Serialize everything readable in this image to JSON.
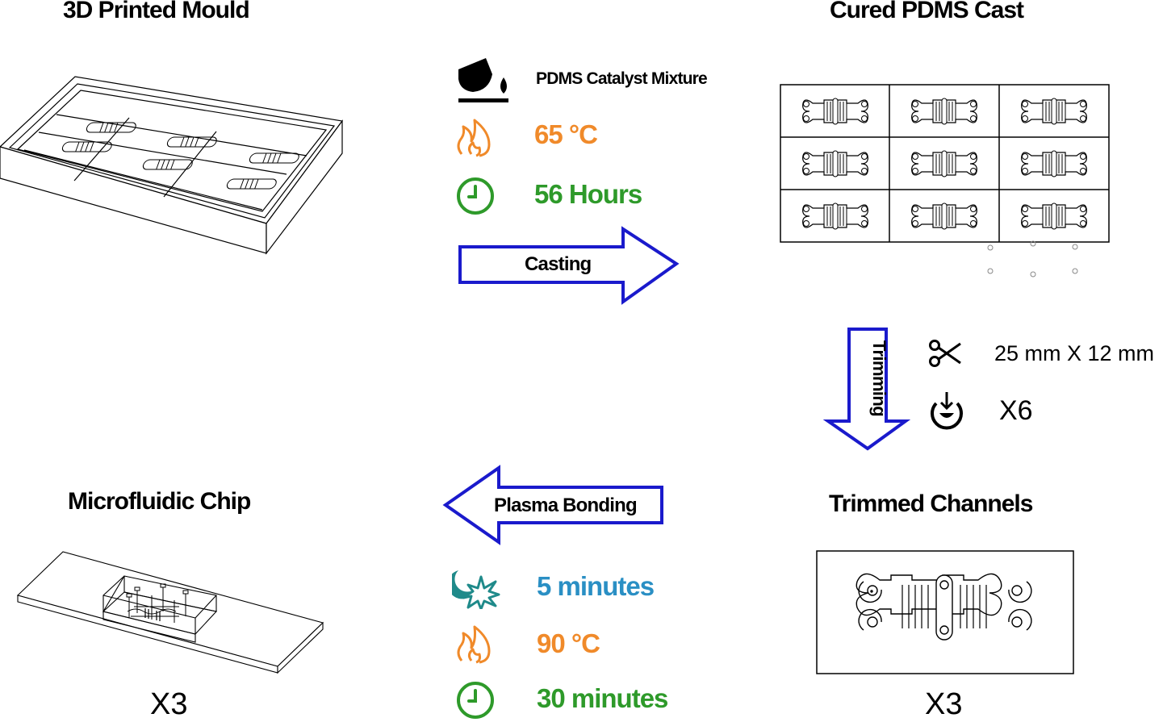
{
  "titles": {
    "mould": "3D Printed Mould",
    "cast": "Cured PDMS Cast",
    "chip": "Microfluidic Chip",
    "trimmed": "Trimmed Channels"
  },
  "casting": {
    "arrow_label": "Casting",
    "mixture_label": "PDMS Catalyst Mixture",
    "temperature": "65 °C",
    "duration": "56 Hours",
    "mixture_icon": "pour-icon",
    "temperature_icon": "flame-icon",
    "duration_icon": "clock-icon"
  },
  "trimming": {
    "arrow_label": "Trimming",
    "size": "25 mm X 12 mm",
    "count": "X6",
    "size_icon": "scissors-icon",
    "count_icon": "download-icon"
  },
  "bonding": {
    "arrow_label": "Plasma Bonding",
    "plasma_time": "5 minutes",
    "temperature": "90 °C",
    "duration": "30 minutes",
    "plasma_icon": "plasma-icon",
    "temperature_icon": "flame-icon",
    "duration_icon": "clock-icon"
  },
  "multipliers": {
    "chip": "X3",
    "trimmed": "X3"
  },
  "colors": {
    "arrow": "#1a1acc",
    "orange": "#f08a2a",
    "green": "#2e9a2a",
    "blue": "#2a8fc4",
    "teal": "#1f8a8a"
  }
}
